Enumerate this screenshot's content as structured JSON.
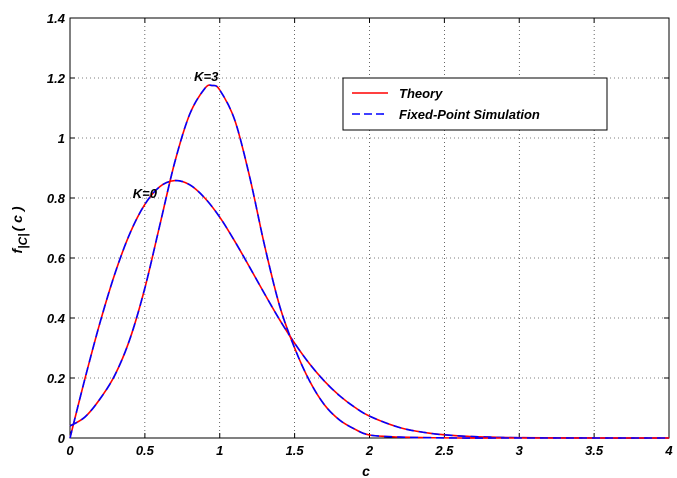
{
  "chart_data": {
    "type": "line",
    "xlabel": "c",
    "ylabel": "f",
    "ylabel_sub": "|C|",
    "ylabel_suffix": "( c )",
    "xlim": [
      0,
      4
    ],
    "ylim": [
      0,
      1.4
    ],
    "grid": true,
    "legend_position": "top-right",
    "x_ticks": [
      "0",
      "0.5",
      "1",
      "1.5",
      "2",
      "2.5",
      "3",
      "3.5",
      "4"
    ],
    "y_ticks": [
      "0",
      "0.2",
      "0.4",
      "0.6",
      "0.8",
      "1",
      "1.2",
      "1.4"
    ],
    "x_tick_values": [
      0,
      0.5,
      1,
      1.5,
      2,
      2.5,
      3,
      3.5,
      4
    ],
    "y_tick_values": [
      0,
      0.2,
      0.4,
      0.6,
      0.8,
      1,
      1.2,
      1.4
    ],
    "legend": [
      {
        "name": "Theory",
        "color": "#ff0000",
        "style": "solid"
      },
      {
        "name": "Fixed-Point Simulation",
        "color": "#0000ff",
        "style": "dashed"
      }
    ],
    "annotations": [
      {
        "text": "K=3",
        "x": 0.91,
        "y": 1.19
      },
      {
        "text": "K=0",
        "x": 0.5,
        "y": 0.8
      }
    ],
    "curves": [
      {
        "label": "K=0",
        "x": [
          0,
          0.1,
          0.2,
          0.3,
          0.4,
          0.5,
          0.6,
          0.7,
          0.8,
          0.9,
          1.0,
          1.1,
          1.2,
          1.3,
          1.4,
          1.5,
          1.6,
          1.7,
          1.8,
          1.9,
          2.0,
          2.2,
          2.4,
          2.6,
          2.8,
          3.0,
          3.5,
          4.0
        ],
        "y": [
          0,
          0.198,
          0.384,
          0.548,
          0.682,
          0.779,
          0.838,
          0.858,
          0.844,
          0.8,
          0.736,
          0.656,
          0.569,
          0.48,
          0.394,
          0.316,
          0.247,
          0.189,
          0.141,
          0.103,
          0.073,
          0.035,
          0.016,
          0.007,
          0.003,
          0.001,
          0.0,
          0.0
        ]
      },
      {
        "label": "K=3",
        "x": [
          0,
          0.1,
          0.2,
          0.3,
          0.4,
          0.5,
          0.6,
          0.7,
          0.8,
          0.9,
          0.95,
          1.0,
          1.1,
          1.2,
          1.3,
          1.4,
          1.5,
          1.6,
          1.7,
          1.8,
          1.9,
          2.0,
          2.2,
          2.4,
          2.6,
          3.0,
          4.0
        ],
        "y": [
          0.04,
          0.07,
          0.13,
          0.21,
          0.33,
          0.5,
          0.71,
          0.92,
          1.08,
          1.165,
          1.175,
          1.16,
          1.06,
          0.87,
          0.64,
          0.44,
          0.3,
          0.19,
          0.11,
          0.06,
          0.03,
          0.01,
          0.003,
          0.001,
          0.0,
          0.0,
          0.0
        ]
      }
    ]
  }
}
